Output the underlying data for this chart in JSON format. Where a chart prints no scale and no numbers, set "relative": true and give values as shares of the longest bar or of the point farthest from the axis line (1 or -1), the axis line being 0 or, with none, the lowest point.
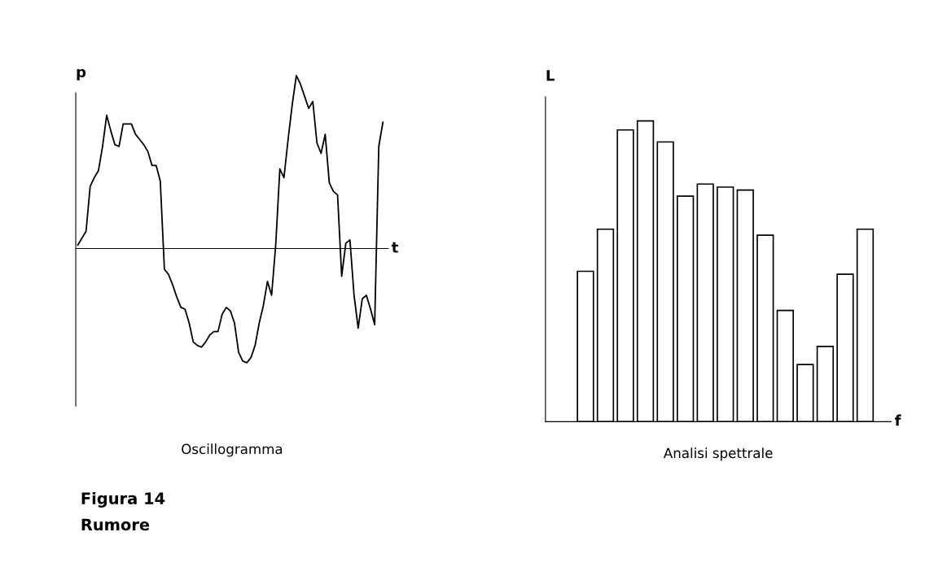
{
  "chart_data": [
    {
      "type": "line",
      "title": "Oscillogramma",
      "xlabel": "t",
      "ylabel": "p",
      "relative": true,
      "annotations": [
        "Figura 14",
        "Rumore"
      ],
      "categories": [
        null,
        null,
        null,
        null,
        null,
        null,
        null,
        null,
        null,
        null,
        null,
        null,
        null,
        null,
        null,
        null,
        null,
        null,
        null,
        null,
        null,
        null,
        null,
        null,
        null,
        null,
        null,
        null,
        null,
        null,
        null,
        null,
        null,
        null,
        null,
        null,
        null,
        null,
        null,
        null,
        null,
        null,
        null,
        null,
        null,
        null,
        null,
        null,
        null,
        null,
        null,
        null,
        null,
        null,
        null,
        null,
        null,
        null,
        null,
        null,
        null,
        null,
        null,
        null,
        null,
        null,
        null,
        null,
        null,
        null,
        null,
        null,
        null,
        null,
        null
      ],
      "series": [
        {
          "color": "#000000",
          "values": [
            0.02,
            0.06,
            0.1,
            0.36,
            0.41,
            0.45,
            0.59,
            0.77,
            0.68,
            0.6,
            0.59,
            0.72,
            0.72,
            0.72,
            0.66,
            0.63,
            0.6,
            0.56,
            0.48,
            0.48,
            0.39,
            -0.12,
            -0.15,
            -0.21,
            -0.28,
            -0.34,
            -0.35,
            -0.43,
            -0.54,
            -0.56,
            -0.57,
            -0.54,
            -0.5,
            -0.48,
            -0.48,
            -0.38,
            -0.34,
            -0.36,
            -0.43,
            -0.6,
            -0.65,
            -0.66,
            -0.63,
            -0.56,
            -0.43,
            -0.33,
            -0.19,
            -0.27,
            0.02,
            0.46,
            0.41,
            0.63,
            0.83,
            1,
            0.95,
            0.88,
            0.81,
            0.85,
            0.61,
            0.55,
            0.66,
            0.38,
            0.33,
            0.31,
            -0.16,
            0.03,
            0.05,
            -0.27,
            -0.46,
            -0.29,
            -0.27,
            -0.35,
            -0.44,
            0.59,
            0.73
          ]
        }
      ]
    },
    {
      "type": "bar",
      "title": "Analisi spettrale",
      "xlabel": "f",
      "ylabel": "L",
      "relative": true,
      "categories": [
        null,
        null,
        null,
        null,
        null,
        null,
        null,
        null,
        null,
        null,
        null,
        null,
        null,
        null,
        null
      ],
      "series": [
        {
          "color": "#ffffff",
          "values": [
            0.5,
            0.64,
            0.97,
            1,
            0.93,
            0.75,
            0.79,
            0.78,
            0.77,
            0.62,
            0.37,
            0.19,
            0.25,
            0.49,
            0.64
          ]
        }
      ]
    }
  ]
}
